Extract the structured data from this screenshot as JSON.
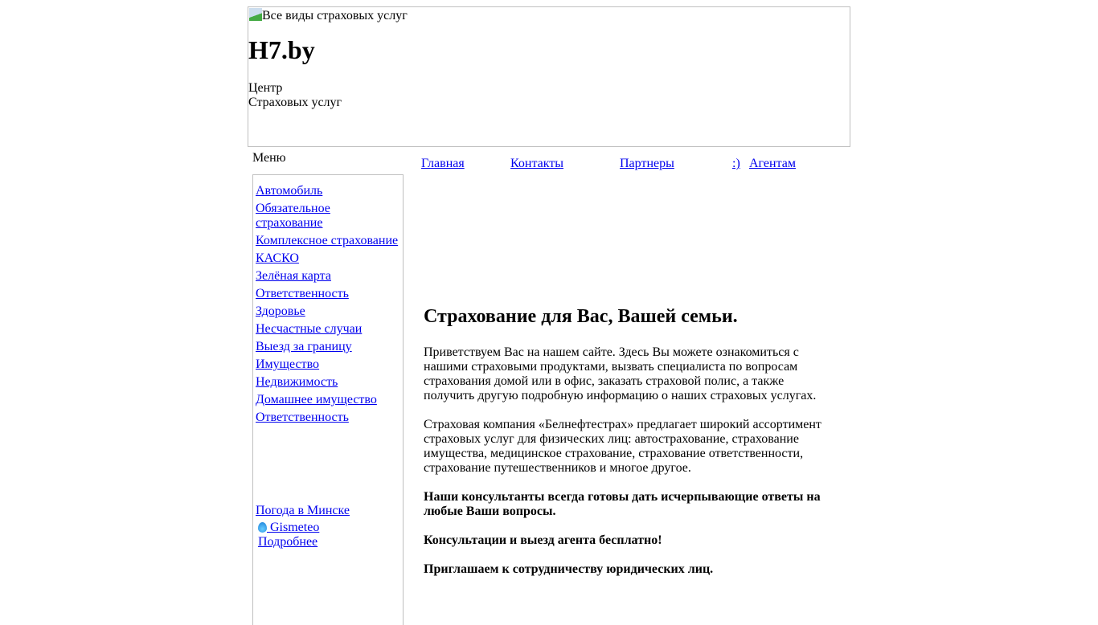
{
  "header": {
    "image_alt": "Все виды страховых услуг",
    "site_name": "H7.by",
    "subtitle_line1": "Центр",
    "subtitle_line2": "Страховых услуг"
  },
  "nav": [
    "Главная",
    "Контакты",
    "Партнеры",
    ":)",
    "Агентам"
  ],
  "sidebar": {
    "label": "Меню",
    "items": [
      "Автомобиль",
      "Обязательное страхование",
      "Комплексное страхование",
      "КАСКО",
      "Зелёная карта",
      "Ответственность",
      "Здоровье",
      "Несчастные случаи",
      "Выезд за границу",
      "Имущество",
      "Недвижимость",
      "Домашнее имущество",
      "Ответственность"
    ],
    "weather": {
      "title": "Погода в Минске",
      "provider": "Gismeteo",
      "more": "Подробнее"
    }
  },
  "content": {
    "title": "Страхование для Вас, Вашей семьи.",
    "p1": "Приветствуем Вас на нашем сайте. Здесь Вы можете ознакомиться с нашими страховыми продуктами, вызвать специалиста по вопросам страхования домой или в офис, заказать страховой полис, а также получить другую подробную информацию о наших страховых услугах.",
    "p2": "Страховая компания «Белнефтестрах» предлагает широкий ассортимент страховых услуг для физических лиц: автострахование, страхование имущества, медицинское страхование, страхование ответственности, страхование путешественников и многое другое.",
    "p3": "Наши консультанты всегда готовы дать исчерпывающие ответы на любые Ваши вопросы.",
    "p4": "Консультации и выезд агента бесплатно!",
    "p5": "Приглашаем к сотрудничеству юридических лиц."
  }
}
